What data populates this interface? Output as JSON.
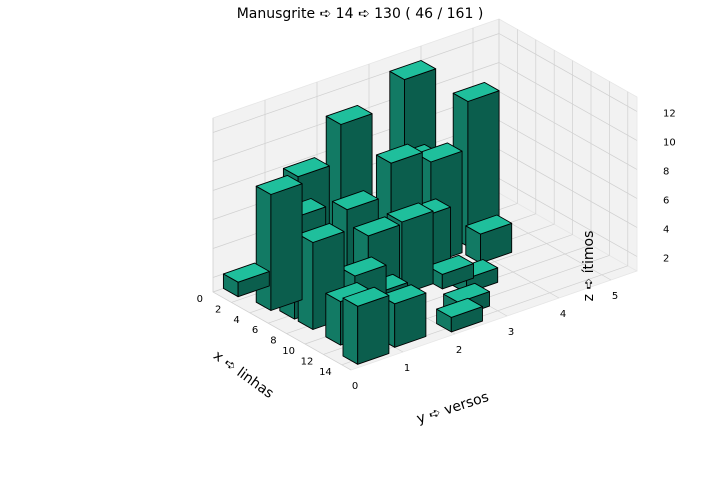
{
  "chart_data": {
    "type": "bar3d",
    "title": "Manusgrite ➪ 14 ➪ 130 ( 46 / 161 )",
    "xlabel": "x ➪ linhas",
    "ylabel": "y ➪ versos",
    "zlabel": "z ➪ ítimos",
    "x_ticks": [
      0,
      2,
      4,
      6,
      8,
      10,
      12,
      14
    ],
    "y_ticks": [
      0,
      1,
      2,
      3,
      4,
      5
    ],
    "z_ticks": [
      2,
      4,
      6,
      8,
      10,
      12
    ],
    "xlim": [
      0,
      15
    ],
    "ylim": [
      0,
      5.5
    ],
    "zlim": [
      1,
      13
    ],
    "bar_width_x": 1.6,
    "bar_width_y": 0.6,
    "colors": {
      "top": "#1fbf9c",
      "front": "#127a64",
      "side": "#0b5e4d",
      "edge": "#000000",
      "pane": "#f2f2f2",
      "grid": "#d0d0d0"
    },
    "bars": [
      {
        "x": 0.0,
        "y": 0.2,
        "z": 2
      },
      {
        "x": 0.0,
        "y": 1.0,
        "z": 2
      },
      {
        "x": 0.0,
        "y": 3.4,
        "z": 12
      },
      {
        "x": 1.0,
        "y": 2.0,
        "z": 11
      },
      {
        "x": 2.0,
        "y": 1.0,
        "z": 9
      },
      {
        "x": 1.5,
        "y": 3.2,
        "z": 7
      },
      {
        "x": 3.0,
        "y": 0.3,
        "z": 9
      },
      {
        "x": 2.5,
        "y": 2.7,
        "z": 8
      },
      {
        "x": 4.0,
        "y": 3.2,
        "z": 8
      },
      {
        "x": 4.5,
        "y": 1.5,
        "z": 7
      },
      {
        "x": 5.0,
        "y": 0.4,
        "z": 8
      },
      {
        "x": 3.5,
        "y": 4.0,
        "z": 11
      },
      {
        "x": 5.0,
        "y": 2.8,
        "z": 5
      },
      {
        "x": 6.5,
        "y": 2.2,
        "z": 6
      },
      {
        "x": 6.0,
        "y": 3.8,
        "z": 3
      },
      {
        "x": 7.5,
        "y": 2.8,
        "z": 2
      },
      {
        "x": 7.0,
        "y": 0.4,
        "z": 7
      },
      {
        "x": 9.0,
        "y": 3.0,
        "z": 2
      },
      {
        "x": 8.5,
        "y": 1.2,
        "z": 7
      },
      {
        "x": 10.0,
        "y": 0.4,
        "z": 4
      },
      {
        "x": 10.5,
        "y": 1.0,
        "z": 4
      },
      {
        "x": 11.0,
        "y": 0.5,
        "z": 6
      },
      {
        "x": 12.5,
        "y": 1.0,
        "z": 4
      },
      {
        "x": 11.5,
        "y": 2.4,
        "z": 2
      },
      {
        "x": 13.0,
        "y": 0.2,
        "z": 5
      },
      {
        "x": 13.0,
        "y": 2.0,
        "z": 2
      }
    ]
  }
}
